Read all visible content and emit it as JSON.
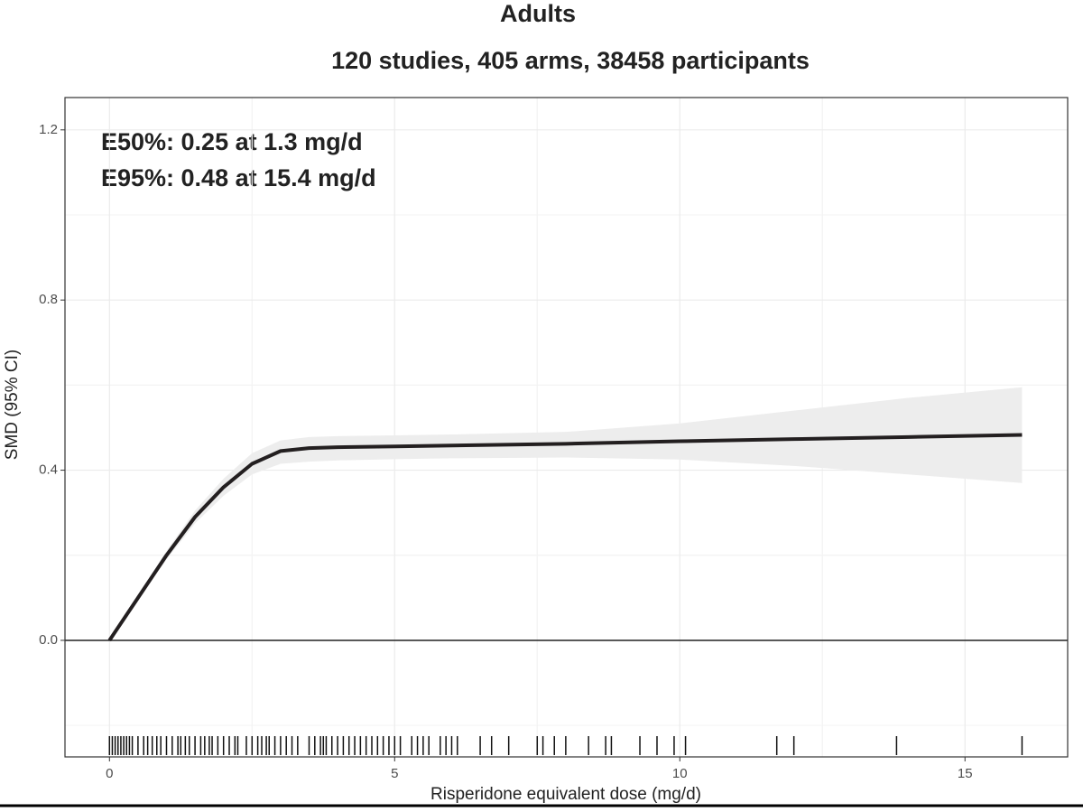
{
  "chart_data": {
    "type": "line",
    "title": "Adults",
    "subtitle": "120 studies, 405 arms, 38458 participants",
    "annotations": [
      "E50%: 0.25 at 1.3 mg/d",
      "E95%: 0.48 at 15.4 mg/d"
    ],
    "x_label": "Risperidone equivalent dose (mg/d)",
    "y_label": "SMD (95% CI)",
    "x": [
      0,
      0.5,
      1,
      1.5,
      2,
      2.5,
      3,
      3.5,
      4,
      5,
      6,
      8,
      10,
      12,
      14,
      16
    ],
    "series": [
      {
        "name": "SMD",
        "color": "#231f20",
        "values": [
          0,
          0.1,
          0.2,
          0.29,
          0.36,
          0.415,
          0.445,
          0.452,
          0.454,
          0.456,
          0.458,
          0.462,
          0.468,
          0.473,
          0.478,
          0.483
        ],
        "lower": [
          0,
          0.095,
          0.19,
          0.275,
          0.34,
          0.39,
          0.415,
          0.42,
          0.423,
          0.426,
          0.428,
          0.43,
          0.425,
          0.41,
          0.39,
          0.37
        ],
        "upper": [
          0,
          0.105,
          0.21,
          0.305,
          0.38,
          0.44,
          0.47,
          0.478,
          0.48,
          0.482,
          0.484,
          0.49,
          0.51,
          0.54,
          0.57,
          0.595
        ]
      }
    ],
    "band_color": "#ededed",
    "rug": [
      0,
      0.05,
      0.1,
      0.15,
      0.2,
      0.25,
      0.3,
      0.35,
      0.4,
      0.5,
      0.6,
      0.67,
      0.75,
      0.83,
      0.9,
      1,
      1.1,
      1.2,
      1.25,
      1.33,
      1.4,
      1.5,
      1.6,
      1.67,
      1.75,
      1.8,
      1.9,
      2,
      2.1,
      2.2,
      2.25,
      2.4,
      2.5,
      2.6,
      2.67,
      2.75,
      2.8,
      2.9,
      3,
      3.1,
      3.2,
      3.3,
      3.5,
      3.6,
      3.7,
      3.75,
      3.8,
      3.9,
      4,
      4.1,
      4.2,
      4.3,
      4.4,
      4.5,
      4.6,
      4.7,
      4.8,
      4.9,
      5,
      5.1,
      5.3,
      5.4,
      5.5,
      5.6,
      5.8,
      5.9,
      6,
      6.1,
      6.5,
      6.7,
      7,
      7.5,
      7.6,
      7.8,
      8,
      8.4,
      8.7,
      8.8,
      9.3,
      9.6,
      9.9,
      10.1,
      11.7,
      12,
      13.8,
      16
    ],
    "hline": 0,
    "xlim": [
      -0.78,
      16.8
    ],
    "xticks": [
      0,
      5,
      10,
      15
    ],
    "ylim": [
      -0.274,
      1.276
    ],
    "yticks": [
      {
        "value": 0,
        "label": "0.0"
      },
      {
        "value": 0.4,
        "label": "0.4"
      },
      {
        "value": 0.8,
        "label": "0.8"
      },
      {
        "value": 1.2,
        "label": "1.2"
      }
    ],
    "grid": true
  }
}
